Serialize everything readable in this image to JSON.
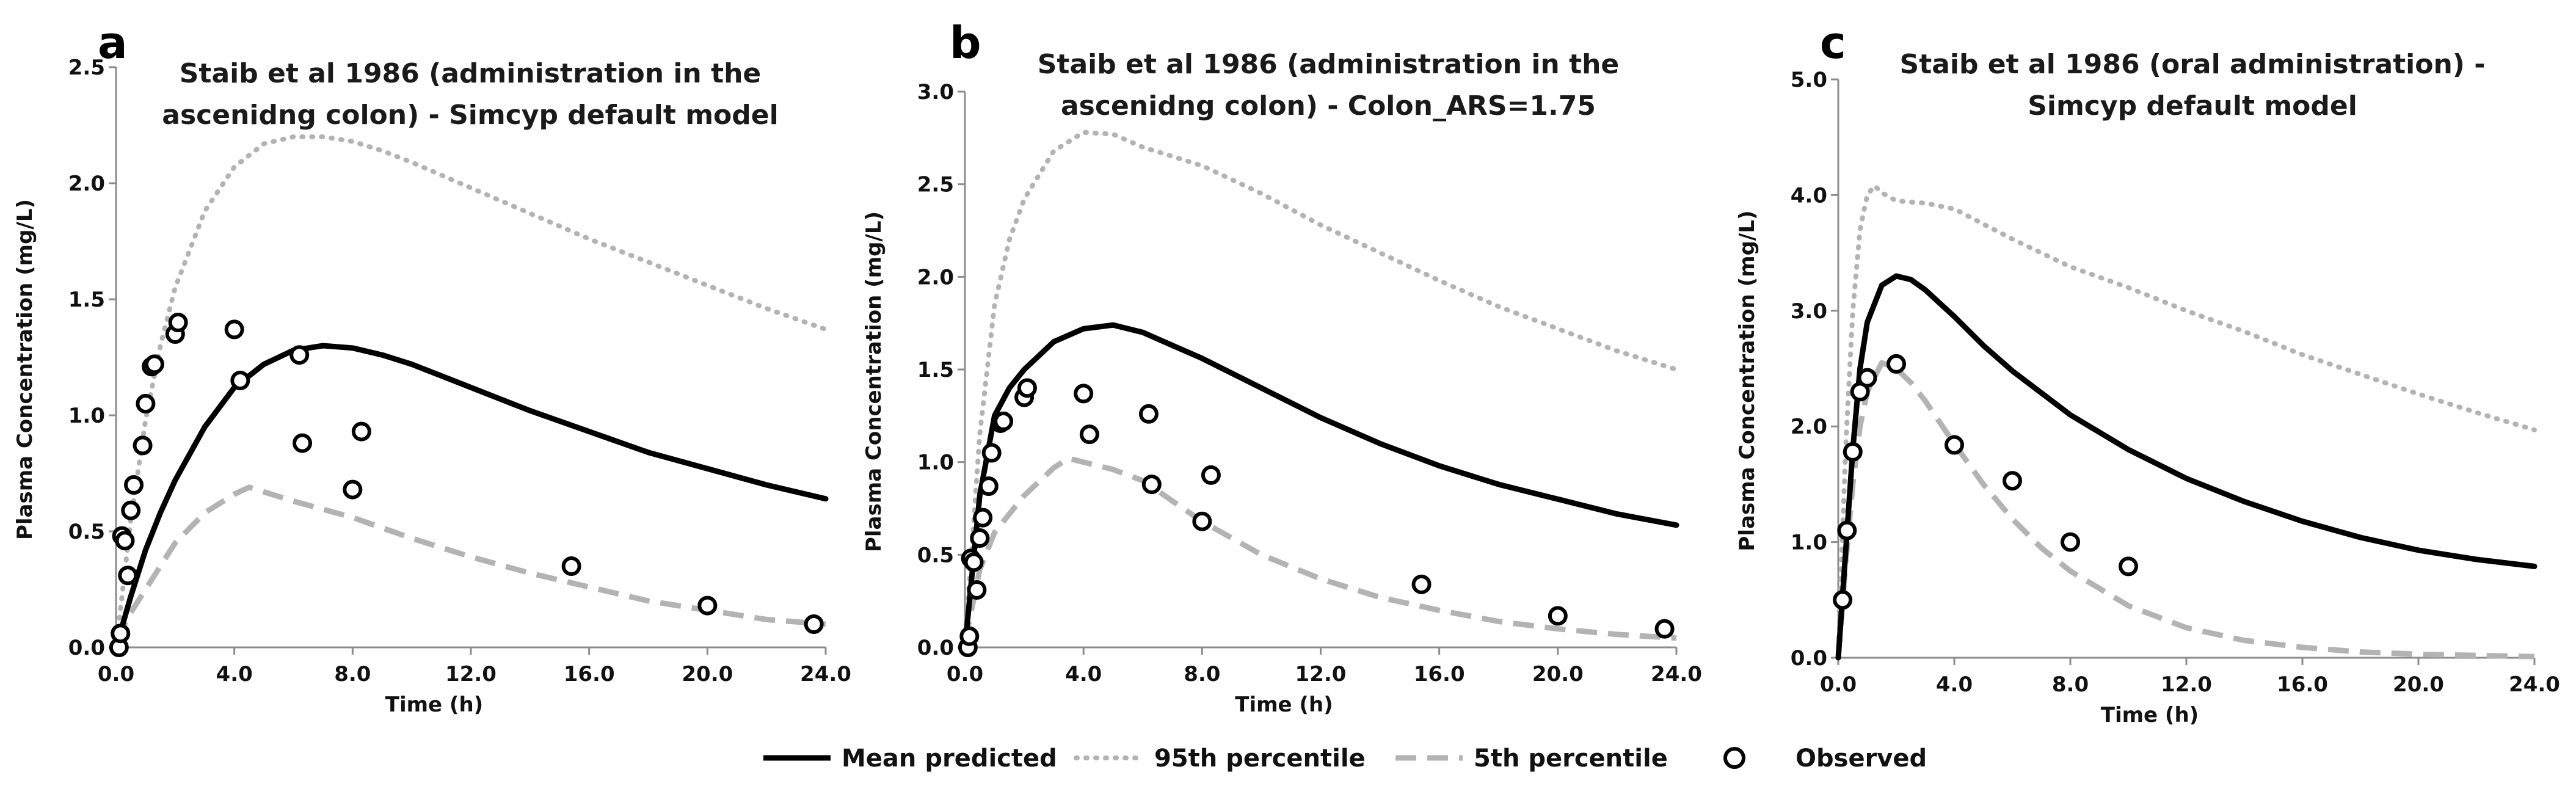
{
  "legend": {
    "mean": "Mean predicted",
    "p95": "95th percentile",
    "p5": "5th percentile",
    "observed": "Observed"
  },
  "colors": {
    "mean": "#000000",
    "p95": "#b3b3b3",
    "p5": "#b3b3b3",
    "observed": "#000000",
    "axis": "#8c8c8c"
  },
  "chart_data": [
    {
      "type": "line",
      "panel": "a",
      "title_lines": [
        "Staib et al 1986 (administration in the",
        "ascenidng colon) - Simcyp default model"
      ],
      "xlabel": "Time (h)",
      "ylabel": "Plasma Concentration (mg/L)",
      "xlim": [
        0,
        24
      ],
      "ylim": [
        0,
        2.5
      ],
      "xticks": [
        "0.0",
        "4.0",
        "8.0",
        "12.0",
        "16.0",
        "20.0",
        "24.0"
      ],
      "yticks": [
        "0.0",
        "0.5",
        "1.0",
        "1.5",
        "2.0",
        "2.5"
      ],
      "series": [
        {
          "name": "Mean predicted",
          "key": "mean",
          "x": [
            0,
            0.5,
            1,
            1.5,
            2,
            3,
            4,
            5,
            6,
            7,
            8,
            9,
            10,
            12,
            14,
            16,
            18,
            20,
            22,
            24
          ],
          "y": [
            0,
            0.22,
            0.42,
            0.58,
            0.72,
            0.95,
            1.12,
            1.22,
            1.28,
            1.3,
            1.29,
            1.26,
            1.22,
            1.12,
            1.02,
            0.93,
            0.84,
            0.77,
            0.7,
            0.64
          ]
        },
        {
          "name": "95th percentile",
          "key": "p95",
          "x": [
            0,
            0.5,
            1,
            1.5,
            2,
            3,
            4,
            5,
            6,
            7,
            8,
            9,
            10,
            12,
            14,
            16,
            18,
            20,
            22,
            24
          ],
          "y": [
            0,
            0.55,
            0.98,
            1.3,
            1.55,
            1.88,
            2.07,
            2.17,
            2.2,
            2.2,
            2.18,
            2.14,
            2.09,
            1.98,
            1.87,
            1.76,
            1.66,
            1.56,
            1.46,
            1.37
          ]
        },
        {
          "name": "5th percentile",
          "key": "p5",
          "x": [
            0,
            0.5,
            1,
            2,
            3,
            4,
            4.5,
            5,
            6,
            8,
            10,
            12,
            14,
            16,
            18,
            20,
            22,
            24
          ],
          "y": [
            0.03,
            0.15,
            0.25,
            0.45,
            0.58,
            0.66,
            0.69,
            0.67,
            0.63,
            0.56,
            0.47,
            0.39,
            0.32,
            0.26,
            0.2,
            0.16,
            0.12,
            0.1
          ]
        },
        {
          "name": "Observed",
          "key": "observed",
          "type": "scatter",
          "x": [
            0.1,
            0.15,
            0.2,
            0.3,
            0.4,
            0.5,
            0.6,
            0.9,
            1.0,
            1.2,
            1.3,
            2.0,
            2.1,
            4.0,
            4.2,
            6.2,
            6.3,
            8.0,
            8.3,
            15.4,
            20.0,
            23.6
          ],
          "y": [
            0.0,
            0.06,
            0.48,
            0.46,
            0.31,
            0.59,
            0.7,
            0.87,
            1.05,
            1.21,
            1.22,
            1.35,
            1.4,
            1.37,
            1.15,
            1.26,
            0.88,
            0.68,
            0.93,
            0.35,
            0.18,
            0.1
          ]
        }
      ]
    },
    {
      "type": "line",
      "panel": "b",
      "title_lines": [
        "Staib et al 1986 (administration in the",
        "ascenidng colon) - Colon_ARS=1.75"
      ],
      "xlabel": "Time (h)",
      "ylabel": "Plasma Concentration (mg/L)",
      "xlim": [
        0,
        24
      ],
      "ylim": [
        0,
        3.0
      ],
      "xticks": [
        "0.0",
        "4.0",
        "8.0",
        "12.0",
        "16.0",
        "20.0",
        "24.0"
      ],
      "yticks": [
        "0.0",
        "0.5",
        "1.0",
        "1.5",
        "2.0",
        "2.5",
        "3.0"
      ],
      "series": [
        {
          "name": "Mean predicted",
          "key": "mean",
          "x": [
            0,
            0.5,
            1,
            1.5,
            2,
            3,
            4,
            5,
            6,
            7,
            8,
            10,
            12,
            14,
            16,
            18,
            20,
            22,
            24
          ],
          "y": [
            0,
            0.82,
            1.25,
            1.4,
            1.5,
            1.65,
            1.72,
            1.74,
            1.7,
            1.63,
            1.56,
            1.4,
            1.24,
            1.1,
            0.98,
            0.88,
            0.8,
            0.72,
            0.66
          ]
        },
        {
          "name": "95th percentile",
          "key": "p95",
          "x": [
            0,
            0.5,
            1,
            1.5,
            2,
            3,
            4,
            5,
            6,
            8,
            10,
            12,
            14,
            16,
            18,
            20,
            22,
            24
          ],
          "y": [
            0,
            1.15,
            1.85,
            2.2,
            2.42,
            2.68,
            2.78,
            2.77,
            2.7,
            2.6,
            2.45,
            2.28,
            2.13,
            1.98,
            1.84,
            1.72,
            1.6,
            1.5
          ]
        },
        {
          "name": "5th percentile",
          "key": "p5",
          "x": [
            0,
            0.5,
            1,
            2,
            3,
            3.5,
            4,
            5,
            6,
            8,
            10,
            12,
            14,
            16,
            18,
            20,
            22,
            24
          ],
          "y": [
            0.03,
            0.42,
            0.62,
            0.82,
            0.97,
            1.02,
            1.0,
            0.96,
            0.9,
            0.68,
            0.5,
            0.37,
            0.27,
            0.2,
            0.14,
            0.1,
            0.07,
            0.05
          ]
        },
        {
          "name": "Observed",
          "key": "observed",
          "type": "scatter",
          "x": [
            0.1,
            0.15,
            0.2,
            0.3,
            0.4,
            0.5,
            0.6,
            0.8,
            0.9,
            1.2,
            1.3,
            2.0,
            2.1,
            4.0,
            4.2,
            6.2,
            6.3,
            8.0,
            8.3,
            15.4,
            20.0,
            23.6
          ],
          "y": [
            0.0,
            0.06,
            0.48,
            0.46,
            0.31,
            0.59,
            0.7,
            0.87,
            1.05,
            1.21,
            1.22,
            1.35,
            1.4,
            1.37,
            1.15,
            1.26,
            0.88,
            0.68,
            0.93,
            0.34,
            0.17,
            0.1
          ]
        }
      ]
    },
    {
      "type": "line",
      "panel": "c",
      "title_lines": [
        "Staib et al 1986 (oral administration) -",
        "Simcyp default model"
      ],
      "xlabel": "Time (h)",
      "ylabel": "Plasma Concentration (mg/L)",
      "xlim": [
        0,
        24
      ],
      "ylim": [
        0,
        5.0
      ],
      "xticks": [
        "0.0",
        "4.0",
        "8.0",
        "12.0",
        "16.0",
        "20.0",
        "24.0"
      ],
      "yticks": [
        "0.0",
        "1.0",
        "2.0",
        "3.0",
        "4.0",
        "5.0"
      ],
      "series": [
        {
          "name": "Mean predicted",
          "key": "mean",
          "x": [
            0,
            0.25,
            0.5,
            0.75,
            1,
            1.5,
            2,
            2.5,
            3,
            4,
            5,
            6,
            8,
            10,
            12,
            14,
            16,
            18,
            20,
            22,
            24
          ],
          "y": [
            0,
            0.9,
            1.8,
            2.5,
            2.9,
            3.22,
            3.3,
            3.27,
            3.18,
            2.95,
            2.7,
            2.48,
            2.1,
            1.8,
            1.55,
            1.35,
            1.18,
            1.04,
            0.93,
            0.85,
            0.79
          ]
        },
        {
          "name": "95th percentile",
          "key": "p95",
          "x": [
            0,
            0.25,
            0.5,
            0.75,
            1,
            1.25,
            1.5,
            2,
            3,
            4,
            5,
            6,
            8,
            10,
            12,
            14,
            16,
            18,
            20,
            22,
            24
          ],
          "y": [
            0,
            1.8,
            3.0,
            3.7,
            4.0,
            4.08,
            4.02,
            3.95,
            3.93,
            3.88,
            3.75,
            3.62,
            3.38,
            3.2,
            3.0,
            2.82,
            2.62,
            2.45,
            2.28,
            2.12,
            1.97
          ]
        },
        {
          "name": "5th percentile",
          "key": "p5",
          "x": [
            0,
            0.25,
            0.5,
            0.75,
            1,
            1.5,
            2,
            2.5,
            3,
            4,
            5,
            6,
            7,
            8,
            10,
            12,
            14,
            16,
            18,
            20,
            22,
            24
          ],
          "y": [
            0,
            0.8,
            1.5,
            2.0,
            2.3,
            2.55,
            2.5,
            2.38,
            2.22,
            1.85,
            1.5,
            1.2,
            0.95,
            0.75,
            0.45,
            0.26,
            0.15,
            0.09,
            0.05,
            0.03,
            0.02,
            0.01
          ]
        },
        {
          "name": "Observed",
          "key": "observed",
          "type": "scatter",
          "x": [
            0.15,
            0.3,
            0.5,
            0.75,
            1.0,
            2.0,
            4.0,
            6.0,
            8.0,
            10.0
          ],
          "y": [
            0.5,
            1.1,
            1.78,
            2.3,
            2.42,
            2.54,
            1.84,
            1.53,
            1.0,
            0.79
          ]
        }
      ]
    }
  ]
}
